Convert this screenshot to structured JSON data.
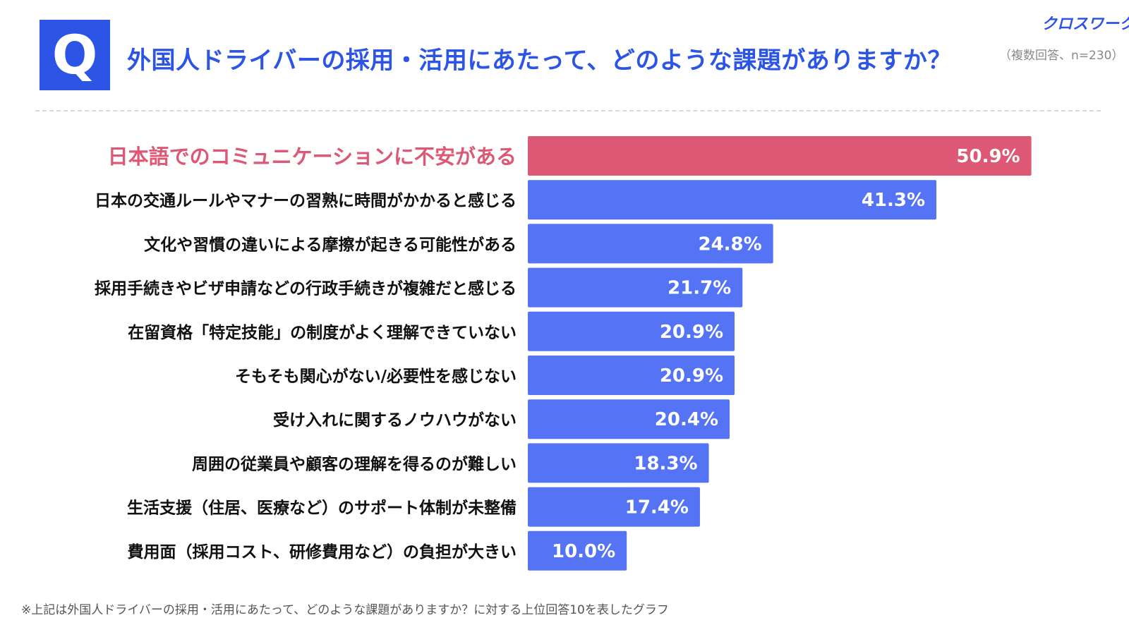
{
  "header": {
    "badge": "Q",
    "title": "外国人ドライバーの採用・活用にあたって、どのような課題がありますか？",
    "sample": "（複数回答、n=230）",
    "brand": "クロスワーク"
  },
  "footnote": "※上記は外国人ドライバーの採用・活用にあたって、どのような課題がありますか？に対する上位回答10を表したグラフ",
  "colors": {
    "accent": "#2c55e6",
    "bar": "#5474f5",
    "highlight": "#dc5874",
    "label": "#111111"
  },
  "chart_data": {
    "type": "bar",
    "orientation": "horizontal",
    "title": "外国人ドライバーの採用・活用にあたって、どのような課題がありますか？",
    "categories": [
      "日本語でのコミュニケーションに不安がある",
      "日本の交通ルールやマナーの習熟に時間がかかると感じる",
      "文化や習慣の違いによる摩擦が起きる可能性がある",
      "採用手続きやビザ申請などの行政手続きが複雑だと感じる",
      "在留資格「特定技能」の制度がよく理解できていない",
      "そもそも関心がない/必要性を感じない",
      "受け入れに関するノウハウがない",
      "周囲の従業員や顧客の理解を得るのが難しい",
      "生活支援（住居、医療など）のサポート体制が未整備",
      "費用面（採用コスト、研修費用など）の負担が大きい"
    ],
    "values": [
      50.9,
      41.3,
      24.8,
      21.7,
      20.9,
      20.9,
      20.4,
      18.3,
      17.4,
      10.0
    ],
    "value_labels": [
      "50.9%",
      "41.3%",
      "24.8%",
      "21.7%",
      "20.9%",
      "20.9%",
      "20.4%",
      "18.3%",
      "17.4%",
      "10.0%"
    ],
    "highlight_index": 0,
    "xlim": [
      0,
      55
    ],
    "grid": false,
    "legend": "none"
  }
}
